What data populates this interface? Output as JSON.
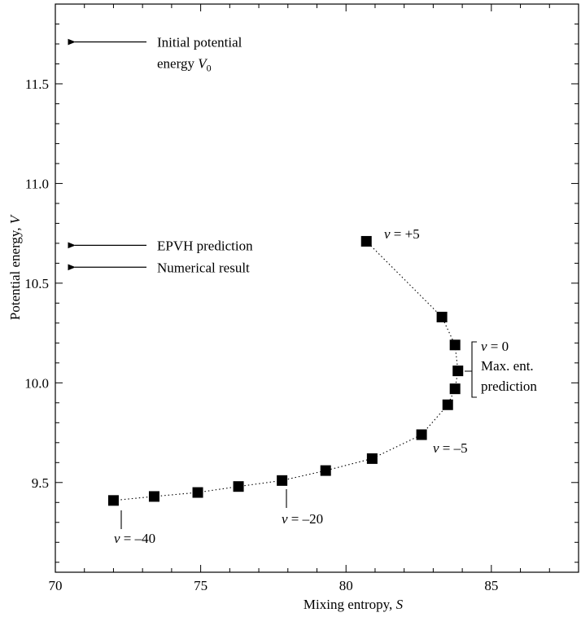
{
  "chart_data": {
    "type": "scatter",
    "xlabel": {
      "text": "Mixing entropy, ",
      "var": "S"
    },
    "ylabel": {
      "text": "Potential energy, ",
      "var": "V"
    },
    "xlim": [
      70,
      88
    ],
    "ylim": [
      9.05,
      11.9
    ],
    "x_ticks": [
      70,
      75,
      80,
      85
    ],
    "y_ticks": [
      9.5,
      10.0,
      10.5,
      11.0,
      11.5
    ],
    "x_tick_labels": [
      "70",
      "75",
      "80",
      "85"
    ],
    "y_tick_labels": [
      "9.5",
      "10.0",
      "10.5",
      "11.0",
      "11.5"
    ],
    "grid": false,
    "points": [
      {
        "x": 72.0,
        "y": 9.41
      },
      {
        "x": 73.4,
        "y": 9.43
      },
      {
        "x": 74.9,
        "y": 9.45
      },
      {
        "x": 76.3,
        "y": 9.48
      },
      {
        "x": 77.8,
        "y": 9.51
      },
      {
        "x": 79.3,
        "y": 9.56
      },
      {
        "x": 80.9,
        "y": 9.62
      },
      {
        "x": 82.6,
        "y": 9.74
      },
      {
        "x": 83.5,
        "y": 9.89
      },
      {
        "x": 83.75,
        "y": 9.97
      },
      {
        "x": 83.85,
        "y": 10.06
      },
      {
        "x": 83.75,
        "y": 10.19
      },
      {
        "x": 83.3,
        "y": 10.33
      },
      {
        "x": 80.7,
        "y": 10.71
      }
    ],
    "markers": {
      "initial_V0": {
        "y": 11.71,
        "label_line1": "Initial potential",
        "label_line2": "energy ",
        "label_var": "V",
        "label_sub": "0"
      },
      "epvh": {
        "y": 10.69,
        "label": "EPVH prediction"
      },
      "numerical": {
        "y": 10.58,
        "label": "Numerical result"
      }
    },
    "annotations": {
      "v_plus5": {
        "var": "v",
        "text": " = +5"
      },
      "v_0": {
        "var": "v",
        "text": " = 0"
      },
      "maxent_line1": "Max. ent.",
      "maxent_line2": "prediction",
      "v_minus5": {
        "var": "v",
        "text": " = –5"
      },
      "v_minus20": {
        "var": "v",
        "text": " = –20"
      },
      "v_minus40": {
        "var": "v",
        "text": " = –40"
      }
    }
  }
}
